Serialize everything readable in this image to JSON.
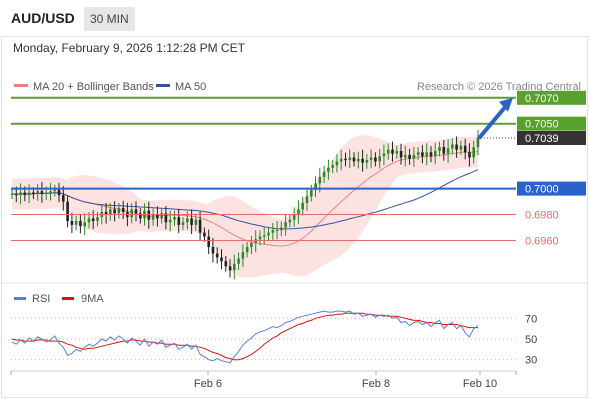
{
  "header": {
    "pair": "AUD/USD",
    "timeframe": "30 MIN",
    "datetime": "Monday, February 9, 2026 1:12:28 PM CET"
  },
  "legend": {
    "ma20": "MA 20 + Bollinger Bands",
    "ma50": "MA 50",
    "credit": "Research © 2026 Trading Central"
  },
  "rsi_legend": {
    "rsi": "RSI",
    "ma": "9MA"
  },
  "colors": {
    "ma20": "#f08080",
    "ma50": "#3355a0",
    "bands": "#fde2e2",
    "resistance": "#5aa02c",
    "pivot": "#2a62c9",
    "support": "#e26d6d",
    "candle_up": "#2a8a2a",
    "candle_down": "#222222",
    "arrow": "#2a62c9",
    "current": "#333333"
  },
  "chart_data": [
    {
      "type": "candlestick",
      "x_ticks": [
        "Feb 6",
        "Feb 8",
        "Feb 10"
      ],
      "ylim": [
        0.6928,
        0.7076
      ],
      "current_price": 0.7039,
      "levels": [
        {
          "value": "0.7070",
          "kind": "resistance",
          "target": true
        },
        {
          "value": "0.7050",
          "kind": "resistance"
        },
        {
          "value": "0.7000",
          "kind": "pivot"
        },
        {
          "value": "0.6980",
          "kind": "support"
        },
        {
          "value": "0.6960",
          "kind": "support"
        }
      ],
      "current_label": "0.7039",
      "close": [
        0.6996,
        0.6995,
        0.6997,
        0.6995,
        0.6997,
        0.6996,
        0.6998,
        0.6996,
        0.6997,
        0.6998,
        0.6999,
        0.6995,
        0.699,
        0.6975,
        0.6972,
        0.6975,
        0.6971,
        0.6974,
        0.6977,
        0.6975,
        0.6978,
        0.6982,
        0.698,
        0.6984,
        0.6981,
        0.6985,
        0.6982,
        0.6978,
        0.6984,
        0.6981,
        0.6977,
        0.6983,
        0.6976,
        0.698,
        0.6977,
        0.6981,
        0.6974,
        0.6976,
        0.6978,
        0.6972,
        0.6974,
        0.6977,
        0.6972,
        0.6976,
        0.6966,
        0.6963,
        0.6955,
        0.695,
        0.6947,
        0.6944,
        0.694,
        0.6937,
        0.6942,
        0.6946,
        0.6951,
        0.6955,
        0.6958,
        0.6961,
        0.6963,
        0.6964,
        0.6966,
        0.6968,
        0.6968,
        0.697,
        0.6974,
        0.6976,
        0.698,
        0.6984,
        0.6989,
        0.6994,
        0.6999,
        0.7004,
        0.7009,
        0.7013,
        0.7016,
        0.7018,
        0.7021,
        0.7023,
        0.7022,
        0.7024,
        0.7021,
        0.7023,
        0.702,
        0.7022,
        0.7024,
        0.7021,
        0.7025,
        0.7027,
        0.703,
        0.7027,
        0.7029,
        0.7024,
        0.7026,
        0.7023,
        0.7026,
        0.7028,
        0.7025,
        0.7028,
        0.7025,
        0.7029,
        0.7032,
        0.7027,
        0.7031,
        0.7034,
        0.703,
        0.7033,
        0.7028,
        0.7024,
        0.7032,
        0.7039
      ]
    },
    {
      "type": "line",
      "title": "RSI",
      "yticks": [
        70,
        50,
        30
      ],
      "ylim": [
        20,
        80
      ],
      "rsi": [
        47,
        45,
        49,
        46,
        51,
        48,
        52,
        50,
        47,
        49,
        53,
        46,
        42,
        34,
        36,
        40,
        38,
        42,
        45,
        43,
        46,
        50,
        48,
        52,
        49,
        53,
        50,
        46,
        51,
        48,
        44,
        50,
        43,
        47,
        45,
        49,
        42,
        44,
        46,
        40,
        42,
        45,
        40,
        44,
        35,
        33,
        30,
        29,
        31,
        29,
        28,
        27,
        33,
        38,
        44,
        48,
        51,
        55,
        57,
        58,
        60,
        62,
        61,
        63,
        66,
        67,
        69,
        71,
        72,
        73,
        74,
        75,
        76,
        77,
        76,
        76,
        77,
        77,
        76,
        77,
        74,
        75,
        72,
        73,
        74,
        71,
        73,
        72,
        73,
        70,
        71,
        66,
        67,
        63,
        66,
        67,
        64,
        66,
        62,
        66,
        68,
        60,
        64,
        66,
        60,
        63,
        56,
        52,
        60,
        63
      ],
      "ma": [
        50,
        49,
        49,
        48,
        48,
        48,
        49,
        49,
        49,
        48,
        48,
        48,
        47,
        45,
        44,
        42,
        41,
        40,
        41,
        41,
        42,
        43,
        44,
        45,
        46,
        47,
        48,
        48,
        49,
        49,
        48,
        48,
        47,
        47,
        46,
        46,
        45,
        45,
        45,
        44,
        44,
        44,
        43,
        43,
        42,
        41,
        39,
        37,
        36,
        34,
        32,
        31,
        30,
        30,
        31,
        33,
        35,
        38,
        41,
        45,
        48,
        51,
        53,
        56,
        58,
        60,
        62,
        64,
        65,
        67,
        68,
        70,
        71,
        72,
        73,
        73,
        74,
        74,
        75,
        75,
        75,
        75,
        75,
        74,
        74,
        73,
        73,
        73,
        72,
        72,
        72,
        71,
        70,
        69,
        68,
        68,
        67,
        66,
        66,
        65,
        65,
        64,
        64,
        64,
        64,
        63,
        62,
        61,
        61,
        61
      ]
    }
  ]
}
